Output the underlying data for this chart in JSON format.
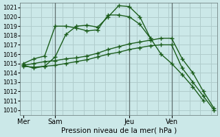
{
  "title": "",
  "xlabel": "Pression niveau de la mer( hPa )",
  "ylim": [
    1009.5,
    1021.5
  ],
  "yticks": [
    1010,
    1011,
    1012,
    1013,
    1014,
    1015,
    1016,
    1017,
    1018,
    1019,
    1020,
    1021
  ],
  "bg_color": "#cbe8e8",
  "grid_color": "#b0cccc",
  "line_color": "#1a5c1a",
  "xtick_labels": [
    "Mer",
    "Sam",
    "Jeu",
    "Ven"
  ],
  "xtick_positions": [
    0,
    3,
    10,
    14
  ],
  "xlim": [
    -0.3,
    18.3
  ],
  "line1_x": [
    0,
    1,
    2,
    3,
    4,
    5,
    6,
    7,
    8,
    9,
    10,
    11,
    12
  ],
  "line1_y": [
    1014.8,
    1014.5,
    1014.7,
    1015.7,
    1018.1,
    1019.0,
    1019.1,
    1018.9,
    1020.0,
    1021.2,
    1021.1,
    1020.0,
    1017.7
  ],
  "line2_x": [
    0,
    1,
    2,
    3,
    4,
    5,
    6,
    7,
    8,
    9,
    10,
    11,
    12,
    13,
    14,
    15,
    16,
    17
  ],
  "line2_y": [
    1015.0,
    1015.5,
    1015.8,
    1019.0,
    1019.0,
    1018.8,
    1018.5,
    1018.6,
    1020.2,
    1020.2,
    1020.0,
    1019.2,
    1017.7,
    1016.0,
    1015.0,
    1013.8,
    1012.5,
    1011.0
  ],
  "line3_x": [
    0,
    1,
    2,
    3,
    4,
    5,
    6,
    7,
    8,
    9,
    10,
    11,
    12,
    13,
    14,
    15,
    16,
    17,
    18
  ],
  "line3_y": [
    1014.8,
    1015.0,
    1015.2,
    1015.3,
    1015.5,
    1015.6,
    1015.8,
    1016.1,
    1016.5,
    1016.8,
    1017.1,
    1017.3,
    1017.5,
    1017.7,
    1017.7,
    1015.5,
    1014.0,
    1012.0,
    1010.2
  ],
  "line4_x": [
    0,
    1,
    2,
    3,
    4,
    5,
    6,
    7,
    8,
    9,
    10,
    11,
    12,
    13,
    14,
    15,
    16,
    17,
    18
  ],
  "line4_y": [
    1014.7,
    1014.6,
    1014.7,
    1014.8,
    1015.0,
    1015.2,
    1015.4,
    1015.7,
    1016.0,
    1016.2,
    1016.5,
    1016.7,
    1016.9,
    1017.0,
    1017.0,
    1014.5,
    1013.0,
    1011.5,
    1010.0
  ],
  "vline_positions": [
    3,
    10,
    14
  ],
  "vline_color": "#607070",
  "figsize": [
    3.2,
    2.0
  ],
  "dpi": 100
}
